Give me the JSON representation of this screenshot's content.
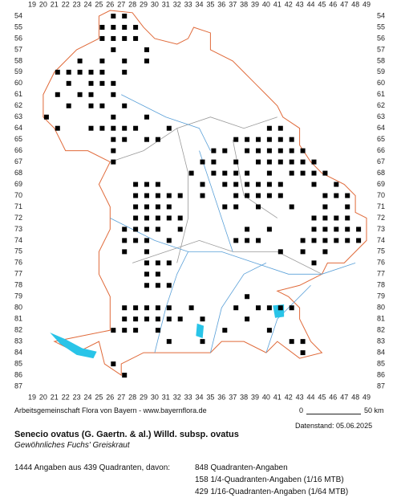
{
  "map": {
    "cols": [
      19,
      20,
      21,
      22,
      23,
      24,
      25,
      26,
      27,
      28,
      29,
      30,
      31,
      32,
      33,
      34,
      35,
      36,
      37,
      38,
      39,
      40,
      41,
      42,
      43,
      44,
      45,
      46,
      47,
      48,
      49
    ],
    "rows": [
      54,
      55,
      56,
      57,
      58,
      59,
      60,
      61,
      62,
      63,
      64,
      65,
      66,
      67,
      68,
      69,
      70,
      71,
      72,
      73,
      74,
      75,
      76,
      77,
      78,
      79,
      80,
      81,
      82,
      83,
      84,
      85,
      86,
      87
    ],
    "records": [
      [
        26,
        54
      ],
      [
        27,
        54
      ],
      [
        26,
        55
      ],
      [
        27,
        55
      ],
      [
        28,
        55
      ],
      [
        25,
        55
      ],
      [
        25,
        56
      ],
      [
        26,
        56
      ],
      [
        27,
        56
      ],
      [
        28,
        56
      ],
      [
        26,
        57
      ],
      [
        29,
        57
      ],
      [
        27,
        58
      ],
      [
        25,
        58
      ],
      [
        29,
        58
      ],
      [
        23,
        58
      ],
      [
        22,
        59
      ],
      [
        23,
        59
      ],
      [
        24,
        59
      ],
      [
        25,
        59
      ],
      [
        27,
        59
      ],
      [
        21,
        59
      ],
      [
        22,
        60
      ],
      [
        24,
        60
      ],
      [
        25,
        60
      ],
      [
        26,
        60
      ],
      [
        23,
        61
      ],
      [
        21,
        61
      ],
      [
        24,
        61
      ],
      [
        26,
        61
      ],
      [
        22,
        62
      ],
      [
        24,
        62
      ],
      [
        25,
        62
      ],
      [
        27,
        62
      ],
      [
        20,
        63
      ],
      [
        26,
        63
      ],
      [
        29,
        63
      ],
      [
        21,
        64
      ],
      [
        24,
        64
      ],
      [
        25,
        64
      ],
      [
        26,
        64
      ],
      [
        27,
        64
      ],
      [
        28,
        64
      ],
      [
        31,
        64
      ],
      [
        26,
        65
      ],
      [
        27,
        65
      ],
      [
        29,
        65
      ],
      [
        30,
        65
      ],
      [
        26,
        66
      ],
      [
        26,
        67
      ],
      [
        40,
        64
      ],
      [
        41,
        64
      ],
      [
        37,
        65
      ],
      [
        38,
        65
      ],
      [
        39,
        65
      ],
      [
        40,
        65
      ],
      [
        41,
        65
      ],
      [
        42,
        65
      ],
      [
        35,
        66
      ],
      [
        36,
        66
      ],
      [
        38,
        66
      ],
      [
        39,
        66
      ],
      [
        40,
        66
      ],
      [
        41,
        66
      ],
      [
        42,
        66
      ],
      [
        43,
        66
      ],
      [
        34,
        67
      ],
      [
        35,
        67
      ],
      [
        37,
        67
      ],
      [
        39,
        67
      ],
      [
        40,
        67
      ],
      [
        41,
        67
      ],
      [
        42,
        67
      ],
      [
        43,
        67
      ],
      [
        44,
        67
      ],
      [
        33,
        68
      ],
      [
        35,
        68
      ],
      [
        36,
        68
      ],
      [
        37,
        68
      ],
      [
        38,
        68
      ],
      [
        40,
        68
      ],
      [
        42,
        68
      ],
      [
        43,
        68
      ],
      [
        44,
        68
      ],
      [
        45,
        68
      ],
      [
        34,
        69
      ],
      [
        36,
        69
      ],
      [
        37,
        69
      ],
      [
        38,
        69
      ],
      [
        39,
        69
      ],
      [
        40,
        69
      ],
      [
        41,
        69
      ],
      [
        44,
        69
      ],
      [
        46,
        69
      ],
      [
        32,
        70
      ],
      [
        34,
        70
      ],
      [
        37,
        70
      ],
      [
        38,
        70
      ],
      [
        39,
        70
      ],
      [
        40,
        70
      ],
      [
        41,
        70
      ],
      [
        45,
        70
      ],
      [
        46,
        70
      ],
      [
        47,
        70
      ],
      [
        36,
        71
      ],
      [
        37,
        71
      ],
      [
        39,
        71
      ],
      [
        42,
        71
      ],
      [
        45,
        71
      ],
      [
        47,
        71
      ],
      [
        44,
        72
      ],
      [
        45,
        72
      ],
      [
        46,
        72
      ],
      [
        47,
        72
      ],
      [
        38,
        73
      ],
      [
        40,
        73
      ],
      [
        44,
        73
      ],
      [
        45,
        73
      ],
      [
        46,
        73
      ],
      [
        47,
        73
      ],
      [
        48,
        73
      ],
      [
        37,
        74
      ],
      [
        38,
        74
      ],
      [
        39,
        74
      ],
      [
        43,
        74
      ],
      [
        44,
        74
      ],
      [
        45,
        74
      ],
      [
        46,
        74
      ],
      [
        47,
        74
      ],
      [
        48,
        74
      ],
      [
        41,
        75
      ],
      [
        43,
        75
      ],
      [
        45,
        75
      ],
      [
        44,
        76
      ],
      [
        28,
        69
      ],
      [
        29,
        69
      ],
      [
        30,
        69
      ],
      [
        28,
        70
      ],
      [
        29,
        70
      ],
      [
        30,
        70
      ],
      [
        31,
        70
      ],
      [
        28,
        71
      ],
      [
        29,
        71
      ],
      [
        30,
        71
      ],
      [
        31,
        71
      ],
      [
        28,
        72
      ],
      [
        29,
        72
      ],
      [
        30,
        72
      ],
      [
        31,
        72
      ],
      [
        32,
        72
      ],
      [
        27,
        73
      ],
      [
        28,
        73
      ],
      [
        29,
        73
      ],
      [
        30,
        73
      ],
      [
        32,
        73
      ],
      [
        27,
        74
      ],
      [
        28,
        74
      ],
      [
        29,
        74
      ],
      [
        31,
        74
      ],
      [
        27,
        75
      ],
      [
        29,
        75
      ],
      [
        29,
        76
      ],
      [
        30,
        76
      ],
      [
        31,
        76
      ],
      [
        29,
        77
      ],
      [
        30,
        77
      ],
      [
        29,
        78
      ],
      [
        30,
        78
      ],
      [
        31,
        78
      ],
      [
        27,
        80
      ],
      [
        28,
        80
      ],
      [
        29,
        80
      ],
      [
        30,
        80
      ],
      [
        31,
        80
      ],
      [
        27,
        81
      ],
      [
        28,
        81
      ],
      [
        29,
        81
      ],
      [
        30,
        81
      ],
      [
        31,
        81
      ],
      [
        32,
        81
      ],
      [
        26,
        82
      ],
      [
        27,
        82
      ],
      [
        28,
        82
      ],
      [
        30,
        82
      ],
      [
        33,
        80
      ],
      [
        34,
        81
      ],
      [
        31,
        83
      ],
      [
        34,
        83
      ],
      [
        36,
        82
      ],
      [
        38,
        81
      ],
      [
        39,
        80
      ],
      [
        40,
        80
      ],
      [
        41,
        80
      ],
      [
        42,
        80
      ],
      [
        38,
        79
      ],
      [
        37,
        80
      ],
      [
        40,
        82
      ],
      [
        42,
        83
      ],
      [
        43,
        83
      ],
      [
        43,
        84
      ],
      [
        26,
        85
      ],
      [
        27,
        86
      ]
    ],
    "credit": "Arbeitsgemeinschaft Flora von Bayern - www.bayernflora.de",
    "scale_start": "0",
    "scale_end": "50 km",
    "date": "Datenstand: 05.06.2025",
    "title": "Senecio ovatus (G. Gaertn. & al.) Willd. subsp. ovatus",
    "subtitle": "Gewöhnliches Fuchs' Greiskraut",
    "summary": "1444 Angaben aus 439 Quadranten, davon:",
    "breakdown": [
      "848 Quadranten-Angaben",
      "158 1/4-Quadranten-Angaben (1/16 MTB)",
      "429 1/16-Quadranten-Angaben (1/64 MTB)"
    ]
  }
}
